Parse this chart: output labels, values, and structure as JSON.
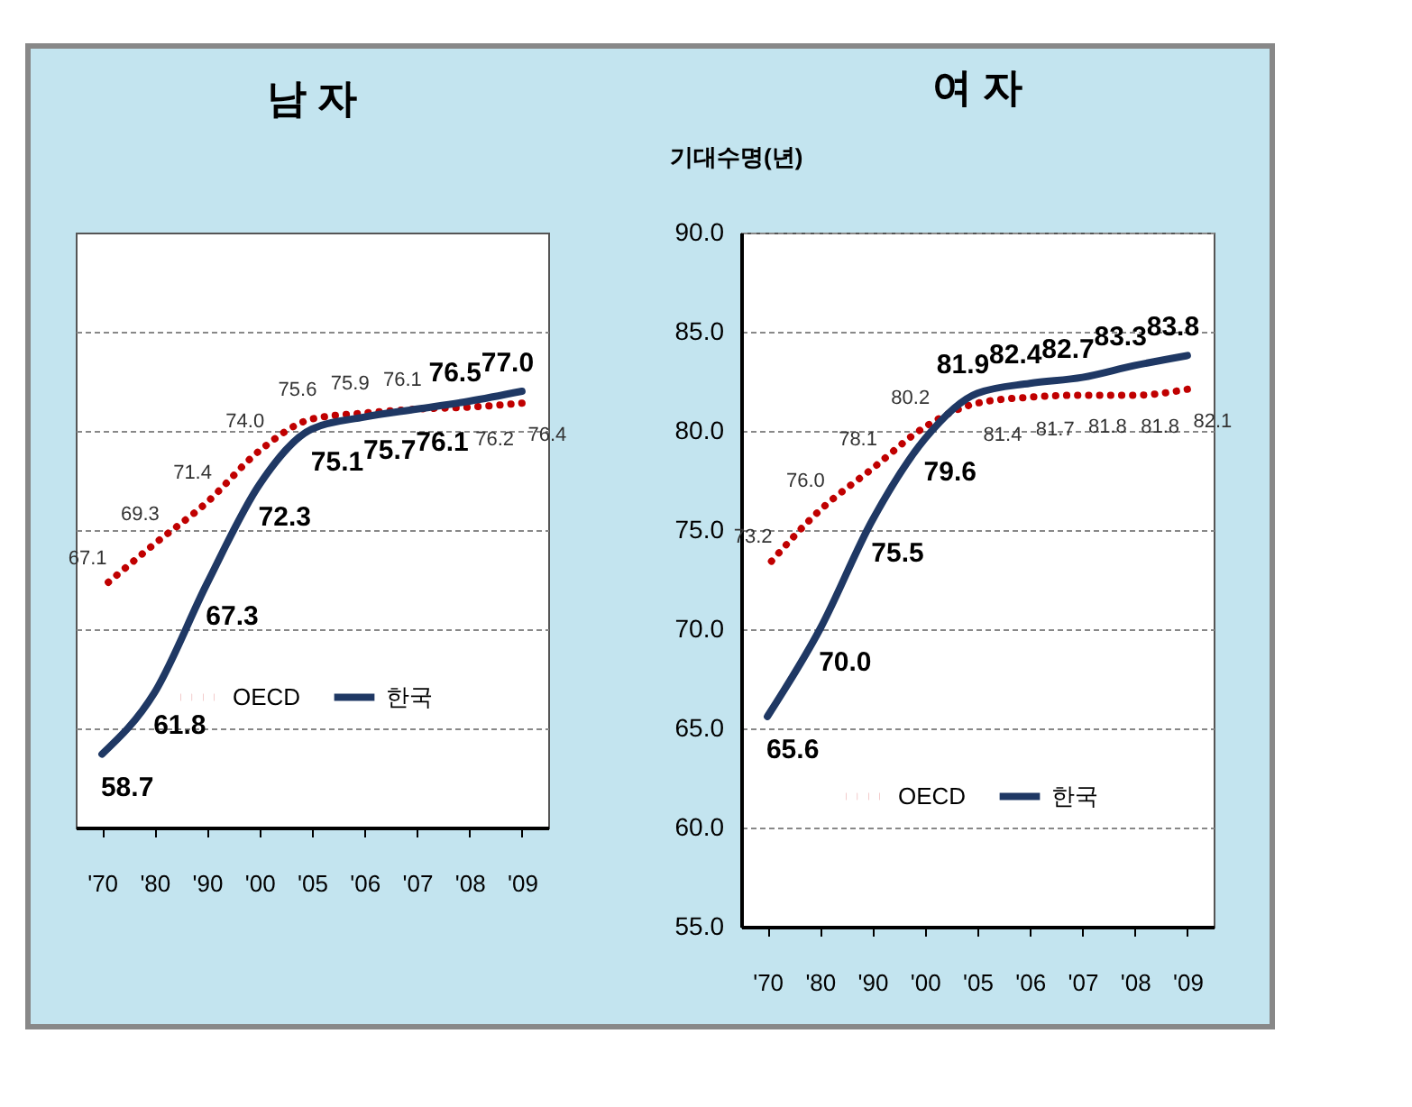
{
  "chart_data": [
    {
      "type": "line",
      "title": "남 자",
      "categories": [
        "'70",
        "'80",
        "'90",
        "'00",
        "'05",
        "'06",
        "'07",
        "'08",
        "'09"
      ],
      "series": [
        {
          "name": "OECD",
          "color": "#c00000",
          "line_style": "dotted",
          "values": [
            67.1,
            69.3,
            71.4,
            74.0,
            75.6,
            75.9,
            76.1,
            76.2,
            76.4
          ],
          "value_labels": [
            "67.1",
            "69.3",
            "71.4",
            "74.0",
            "75.6",
            "75.9",
            "76.1",
            "76.2",
            "76.4"
          ]
        },
        {
          "name": "한국",
          "color": "#1f3864",
          "line_style": "solid",
          "values": [
            58.7,
            61.8,
            67.3,
            72.3,
            75.1,
            75.7,
            76.1,
            76.5,
            77.0
          ],
          "value_labels": [
            "58.7",
            "61.8",
            "67.3",
            "72.3",
            "75.1",
            "75.7",
            "76.1",
            "76.5",
            "77.0"
          ]
        }
      ],
      "ylim": [
        55,
        85
      ],
      "yticks": [
        {
          "value": 60,
          "label": null
        },
        {
          "value": 65,
          "label": null
        },
        {
          "value": 70,
          "label": null
        },
        {
          "value": 75,
          "label": null
        },
        {
          "value": 80,
          "label": null
        }
      ],
      "tick_labels": "x",
      "grid": "y",
      "legend": "bottom right",
      "data_labels": true
    },
    {
      "type": "line",
      "title": "여 자",
      "ylabel": "기대수명(년)",
      "categories": [
        "'70",
        "'80",
        "'90",
        "'00",
        "'05",
        "'06",
        "'07",
        "'08",
        "'09"
      ],
      "series": [
        {
          "name": "OECD",
          "color": "#c00000",
          "line_style": "dotted",
          "values": [
            73.2,
            76.0,
            78.1,
            80.2,
            81.4,
            81.7,
            81.8,
            81.8,
            82.1
          ],
          "value_labels": [
            "73.2",
            "76.0",
            "78.1",
            "80.2",
            "81.4",
            "81.7",
            "81.8",
            "81.8",
            "82.1"
          ]
        },
        {
          "name": "한국",
          "color": "#1f3864",
          "line_style": "solid",
          "values": [
            65.6,
            70.0,
            75.5,
            79.6,
            81.9,
            82.4,
            82.7,
            83.3,
            83.8
          ],
          "value_labels": [
            "65.6",
            "70.0",
            "75.5",
            "79.6",
            "81.9",
            "82.4",
            "82.7",
            "83.3",
            "83.8"
          ]
        }
      ],
      "ylim": [
        55,
        90
      ],
      "yticks": [
        {
          "value": 55,
          "label": "55.0"
        },
        {
          "value": 60,
          "label": "60.0"
        },
        {
          "value": 65,
          "label": "65.0"
        },
        {
          "value": 70,
          "label": "70.0"
        },
        {
          "value": 75,
          "label": "75.0"
        },
        {
          "value": 80,
          "label": "80.0"
        },
        {
          "value": 85,
          "label": "85.0"
        },
        {
          "value": 90,
          "label": "90.0"
        }
      ],
      "grid": "y",
      "legend": "bottom right",
      "data_labels": true
    }
  ]
}
